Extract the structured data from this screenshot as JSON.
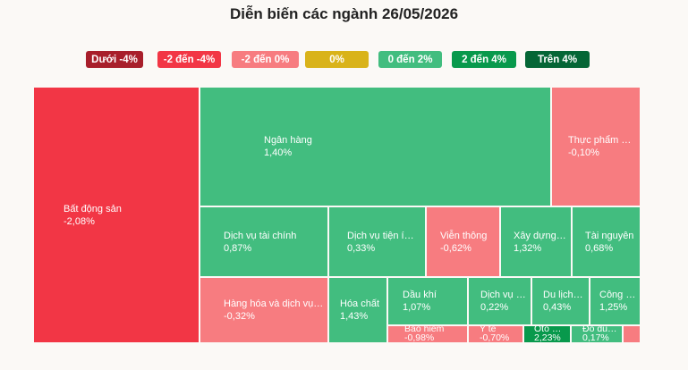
{
  "chart_data": {
    "type": "treemap",
    "title": "Diễn biến các ngành 26/05/2026",
    "legend": [
      {
        "label": "Dưới -4%",
        "color": "#a81f2b"
      },
      {
        "label": "-2 đến -4%",
        "color": "#f23645"
      },
      {
        "label": "-2 đến 0%",
        "color": "#f77c80"
      },
      {
        "label": "0%",
        "color": "#d9b31a"
      },
      {
        "label": "0 đến 2%",
        "color": "#42bd7f"
      },
      {
        "label": "2 đến 4%",
        "color": "#08994c"
      },
      {
        "label": "Trên 4%",
        "color": "#056636"
      }
    ],
    "sectors": [
      {
        "name": "Bất động sản",
        "change": "-2,08%",
        "value": -2.08,
        "color": "#f23645"
      },
      {
        "name": "Ngân hàng",
        "change": "1,40%",
        "value": 1.4,
        "color": "#42bd7f"
      },
      {
        "name": "Thực phẩm & Đ…",
        "change": "-0,10%",
        "value": -0.1,
        "color": "#f77c80"
      },
      {
        "name": "Dịch vụ tài chính",
        "change": "0,87%",
        "value": 0.87,
        "color": "#42bd7f"
      },
      {
        "name": "Dịch vụ tiện í…",
        "change": "0,33%",
        "value": 0.33,
        "color": "#42bd7f"
      },
      {
        "name": "Viễn thông",
        "change": "-0,62%",
        "value": -0.62,
        "color": "#f77c80"
      },
      {
        "name": "Xây dựng &…",
        "change": "1,32%",
        "value": 1.32,
        "color": "#42bd7f"
      },
      {
        "name": "Tài nguyên",
        "change": "0,68%",
        "value": 0.68,
        "color": "#42bd7f"
      },
      {
        "name": "Hàng hóa và dịch vụ…",
        "change": "-0,32%",
        "value": -0.32,
        "color": "#f77c80"
      },
      {
        "name": "Hóa chất",
        "change": "1,43%",
        "value": 1.43,
        "color": "#42bd7f"
      },
      {
        "name": "Dầu khí",
        "change": "1,07%",
        "value": 1.07,
        "color": "#42bd7f"
      },
      {
        "name": "Dịch vụ b…",
        "change": "0,22%",
        "value": 0.22,
        "color": "#42bd7f"
      },
      {
        "name": "Du lịch …",
        "change": "0,43%",
        "value": 0.43,
        "color": "#42bd7f"
      },
      {
        "name": "Công ng…",
        "change": "1,25%",
        "value": 1.25,
        "color": "#42bd7f"
      },
      {
        "name": "Bảo hiểm",
        "change": "-0,98%",
        "value": -0.98,
        "color": "#f77c80"
      },
      {
        "name": "Y tế",
        "change": "-0,70%",
        "value": -0.7,
        "color": "#f77c80"
      },
      {
        "name": "Ôtô & l…",
        "change": "2,23%",
        "value": 2.23,
        "color": "#08994c"
      },
      {
        "name": "Đồ dùng…",
        "change": "0,17%",
        "value": 0.17,
        "color": "#42bd7f"
      },
      {
        "name": "",
        "change": "",
        "value": null,
        "color": "#f77c80"
      }
    ]
  }
}
